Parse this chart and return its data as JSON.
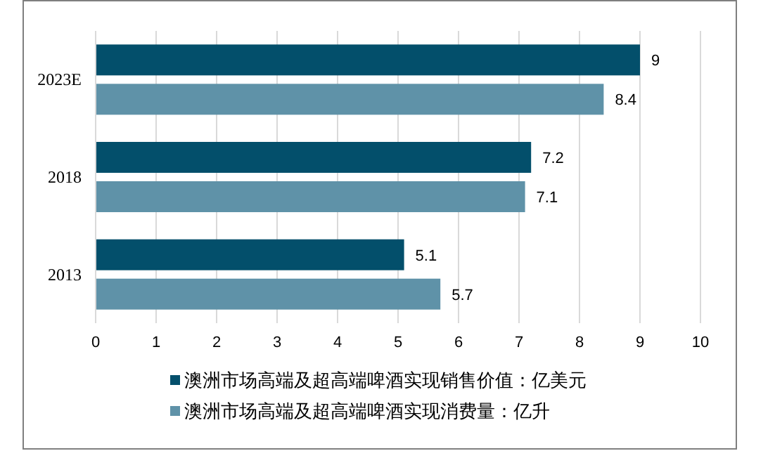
{
  "chart_data": {
    "type": "bar",
    "orientation": "horizontal",
    "categories": [
      "2023E",
      "2018",
      "2013"
    ],
    "series": [
      {
        "name": "澳洲市场高端及超高端啤酒实现销售价值：亿美元",
        "color": "#034f6b",
        "values": [
          9,
          7.2,
          5.1
        ]
      },
      {
        "name": "澳洲市场高端及超高端啤酒实现消费量：亿升",
        "color": "#5f92a8",
        "values": [
          8.4,
          7.1,
          5.7
        ]
      }
    ],
    "xlim": [
      0,
      10
    ],
    "xticks": [
      0,
      1,
      2,
      3,
      4,
      5,
      6,
      7,
      8,
      9,
      10
    ],
    "grid": "x",
    "legend": "bottom",
    "data_labels": true
  }
}
